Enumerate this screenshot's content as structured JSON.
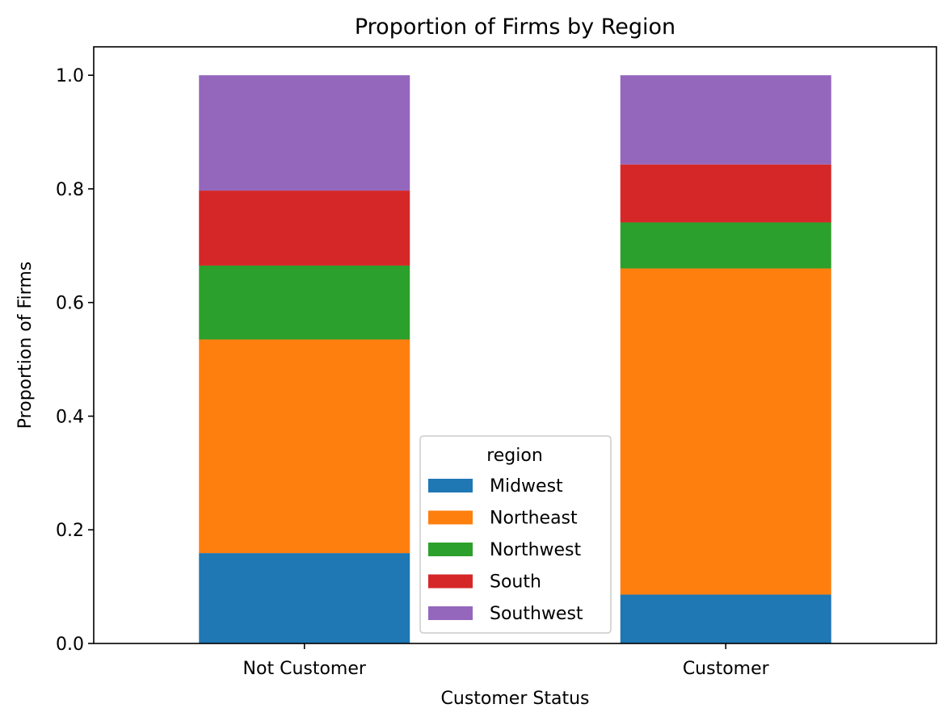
{
  "chart_data": {
    "type": "bar",
    "stacked": true,
    "title": "Proportion of Firms by Region",
    "xlabel": "Customer Status",
    "ylabel": "Proportion of Firms",
    "categories": [
      "Not Customer",
      "Customer"
    ],
    "ylim": [
      0,
      1.05
    ],
    "yticks": [
      0.0,
      0.2,
      0.4,
      0.6,
      0.8,
      1.0
    ],
    "ytick_labels": [
      "0.0",
      "0.2",
      "0.4",
      "0.6",
      "0.8",
      "1.0"
    ],
    "grid": false,
    "legend": {
      "title": "region",
      "position": "lower center"
    },
    "series": [
      {
        "name": "Midwest",
        "color": "#1f77b4",
        "values": [
          0.159,
          0.086
        ]
      },
      {
        "name": "Northeast",
        "color": "#ff7f0e",
        "values": [
          0.376,
          0.574
        ]
      },
      {
        "name": "Northwest",
        "color": "#2ca02c",
        "values": [
          0.13,
          0.081
        ]
      },
      {
        "name": "South",
        "color": "#d62728",
        "values": [
          0.132,
          0.102
        ]
      },
      {
        "name": "Southwest",
        "color": "#9467bd",
        "values": [
          0.203,
          0.157
        ]
      }
    ]
  }
}
